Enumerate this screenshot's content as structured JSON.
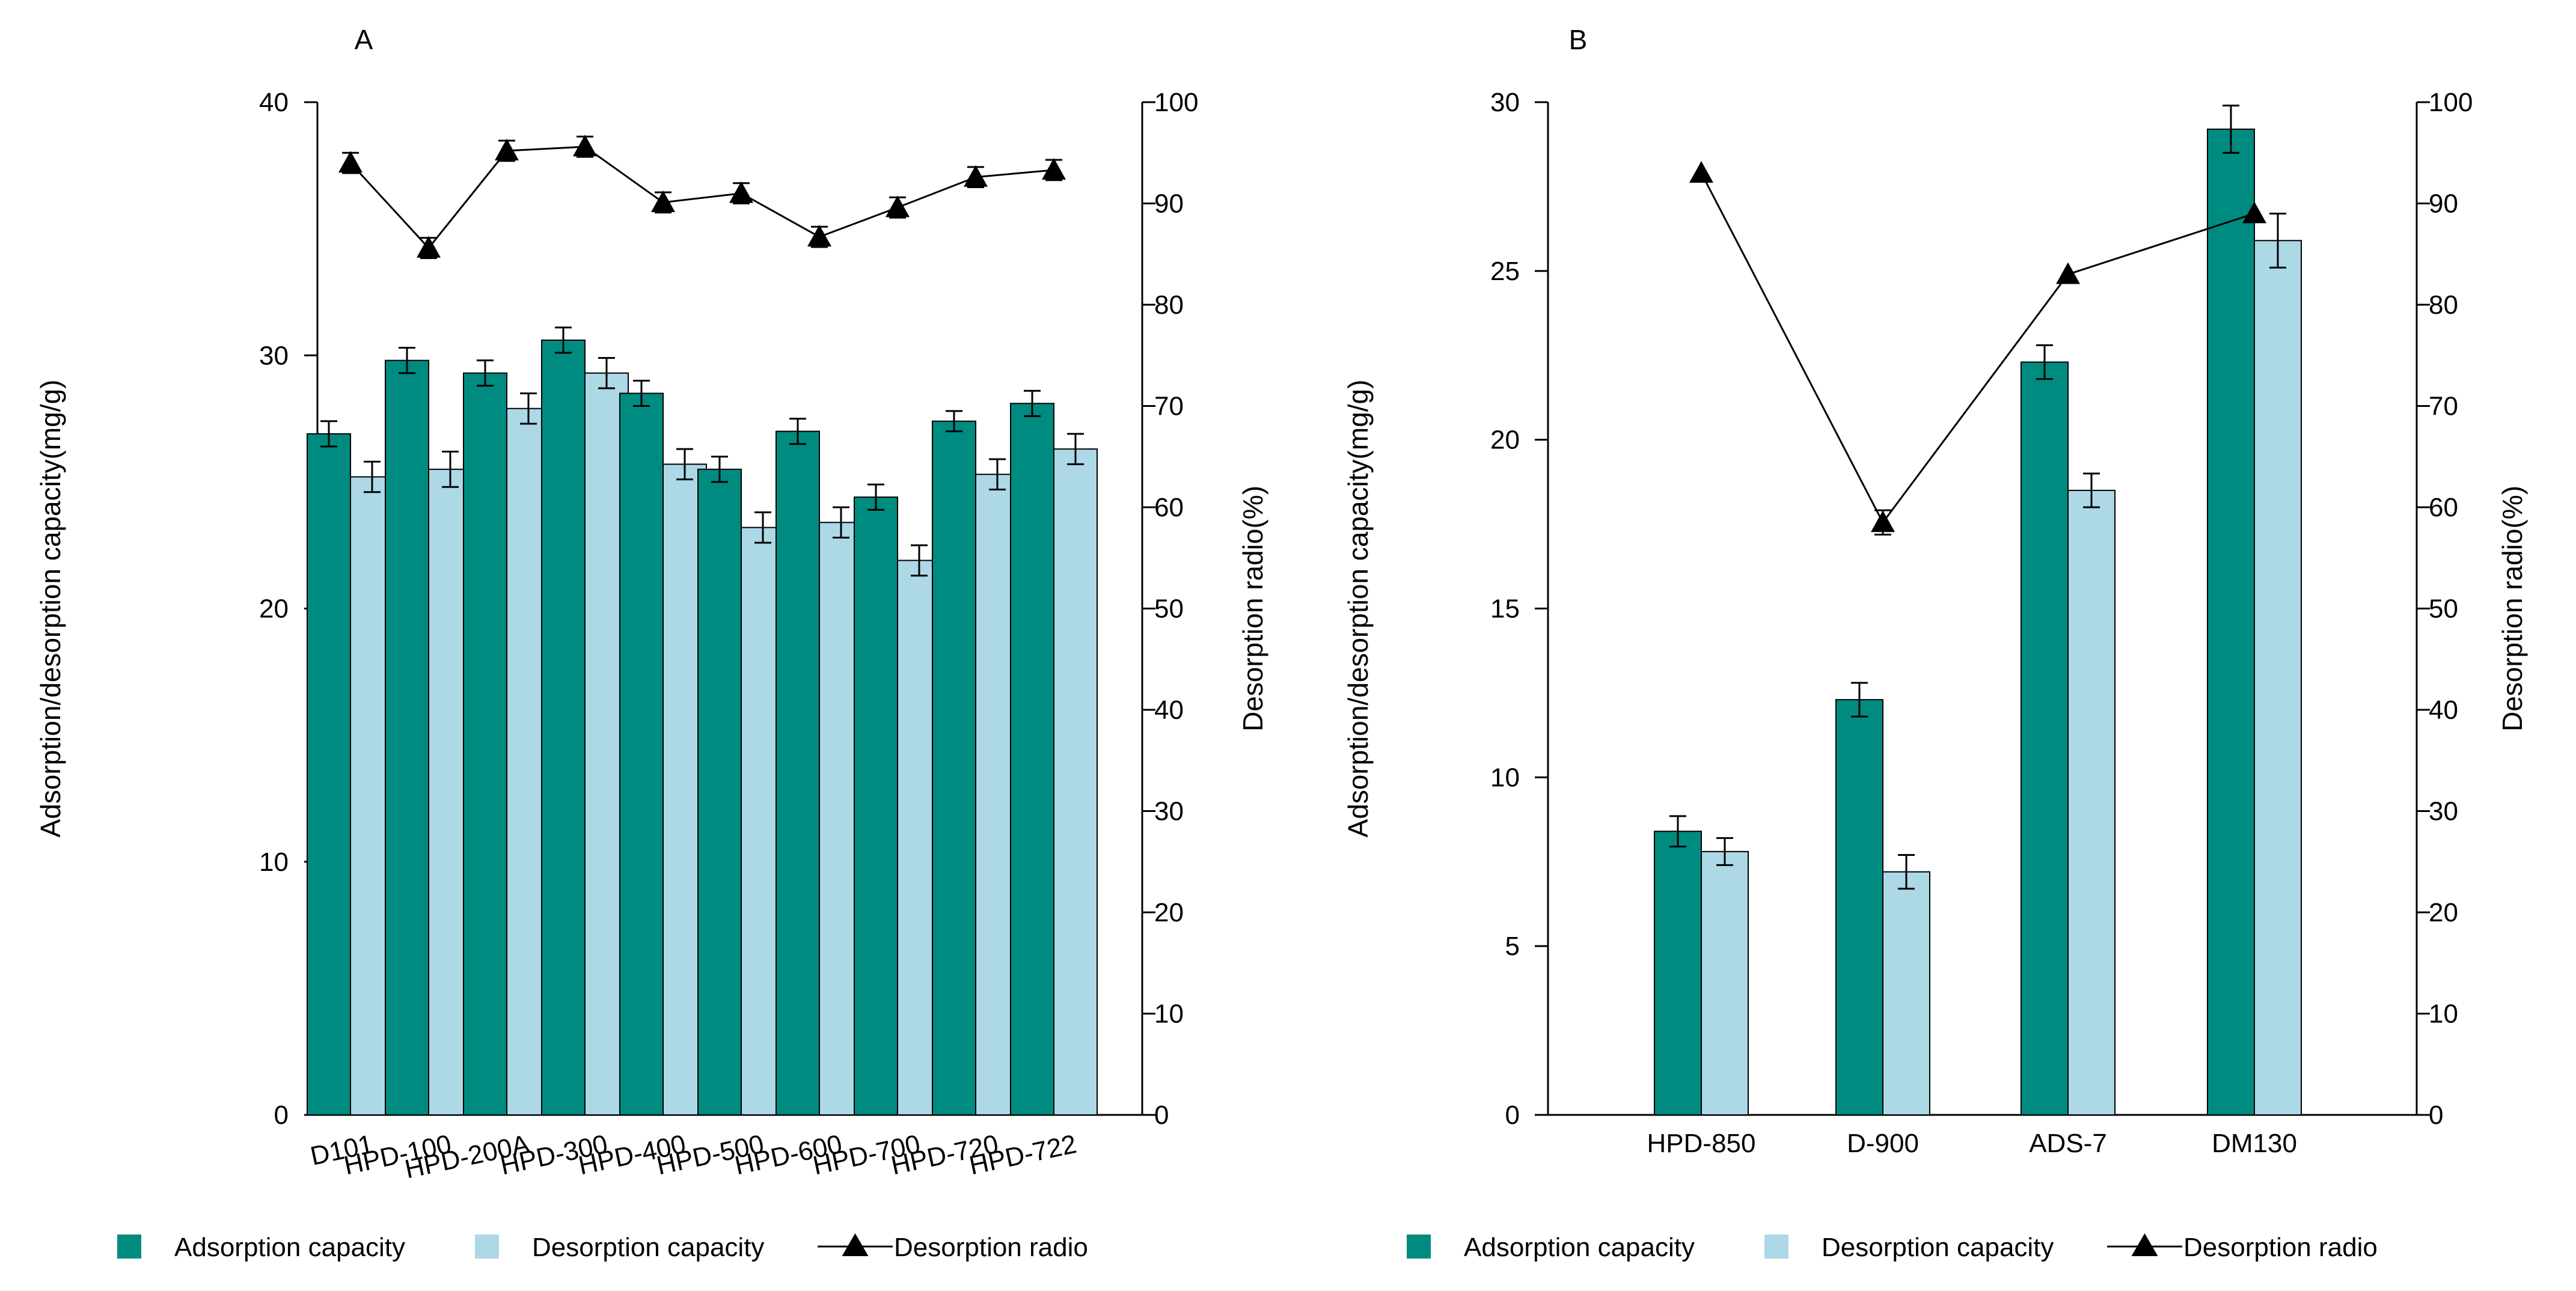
{
  "figure": {
    "legend": {
      "adsorption": "Adsorption capacity",
      "desorption": "Desorption capacity",
      "radio": "Desorption radio"
    },
    "colors": {
      "adsorption": "#008b80",
      "desorption": "#add8e6",
      "line": "#000000",
      "axis": "#000000"
    }
  },
  "chart_data": [
    {
      "type": "bar",
      "panel_label": "A",
      "categories": [
        "D101",
        "HPD-100",
        "HPD-200A",
        "HPD-300",
        "HPD-400",
        "HPD-500",
        "HPD-600",
        "HPD-700",
        "HPD-720",
        "HPD-722"
      ],
      "series": [
        {
          "name": "Adsorption capacity",
          "axis": "left",
          "values": [
            26.9,
            29.8,
            29.3,
            30.6,
            28.5,
            25.5,
            27.0,
            24.4,
            27.4,
            28.1
          ],
          "errors": [
            0.5,
            0.5,
            0.5,
            0.5,
            0.5,
            0.5,
            0.5,
            0.5,
            0.4,
            0.5
          ]
        },
        {
          "name": "Desorption capacity",
          "axis": "left",
          "values": [
            25.2,
            25.5,
            27.9,
            29.3,
            25.7,
            23.2,
            23.4,
            21.9,
            25.3,
            26.3
          ],
          "errors": [
            0.6,
            0.7,
            0.6,
            0.6,
            0.6,
            0.6,
            0.6,
            0.6,
            0.6,
            0.6
          ]
        },
        {
          "name": "Desorption radio",
          "axis": "right",
          "type": "line",
          "values": [
            94.0,
            85.6,
            95.2,
            95.6,
            90.1,
            91.0,
            86.7,
            89.6,
            92.6,
            93.3
          ],
          "errors": [
            1.0,
            1.0,
            1.0,
            1.0,
            1.0,
            1.0,
            1.0,
            1.0,
            1.0,
            1.0
          ]
        }
      ],
      "ylabel_left": "Adsorption/desorption capacity(mg/g)",
      "ylabel_right": "Desorption radio(%)",
      "ylim_left": [
        0,
        40
      ],
      "yticks_left": [
        0,
        10,
        20,
        30,
        40
      ],
      "ylim_right": [
        0,
        100
      ],
      "yticks_right": [
        0,
        10,
        20,
        30,
        40,
        50,
        60,
        70,
        80,
        90,
        100
      ],
      "tick_labels_left": [
        "0",
        "10",
        "20",
        "30",
        "40"
      ],
      "tick_labels_right": [
        "0",
        "10",
        "20",
        "30",
        "40",
        "50",
        "60",
        "70",
        "80",
        "90",
        "100"
      ],
      "xtick_rotation": "angled",
      "legend": "bottom"
    },
    {
      "type": "bar",
      "panel_label": "B",
      "categories": [
        "HPD-850",
        "D-900",
        "ADS-7",
        "DM130"
      ],
      "series": [
        {
          "name": "Adsorption capacity",
          "axis": "left",
          "values": [
            8.4,
            12.3,
            22.3,
            29.2
          ],
          "errors": [
            0.45,
            0.5,
            0.5,
            0.7
          ]
        },
        {
          "name": "Desorption capacity",
          "axis": "left",
          "values": [
            7.8,
            7.2,
            18.5,
            25.9
          ],
          "errors": [
            0.4,
            0.5,
            0.5,
            0.8
          ]
        },
        {
          "name": "Desorption radio",
          "axis": "right",
          "type": "line",
          "values": [
            93.0,
            58.5,
            83.0,
            89.0
          ],
          "errors": [
            0.0,
            1.2,
            0.0,
            0.0
          ]
        }
      ],
      "ylabel_left": "Adsorption/desorption capacity(mg/g)",
      "ylabel_right": "Desorption radio(%)",
      "ylim_left": [
        0,
        30
      ],
      "yticks_left": [
        0,
        5,
        10,
        15,
        20,
        25,
        30
      ],
      "ylim_right": [
        0,
        100
      ],
      "yticks_right": [
        0,
        10,
        20,
        30,
        40,
        50,
        60,
        70,
        80,
        90,
        100
      ],
      "tick_labels_left": [
        "0",
        "5",
        "10",
        "15",
        "20",
        "25",
        "30"
      ],
      "tick_labels_right": [
        "0",
        "10",
        "20",
        "30",
        "40",
        "50",
        "60",
        "70",
        "80",
        "90",
        "100"
      ],
      "xtick_rotation": "none",
      "legend": "bottom"
    }
  ]
}
